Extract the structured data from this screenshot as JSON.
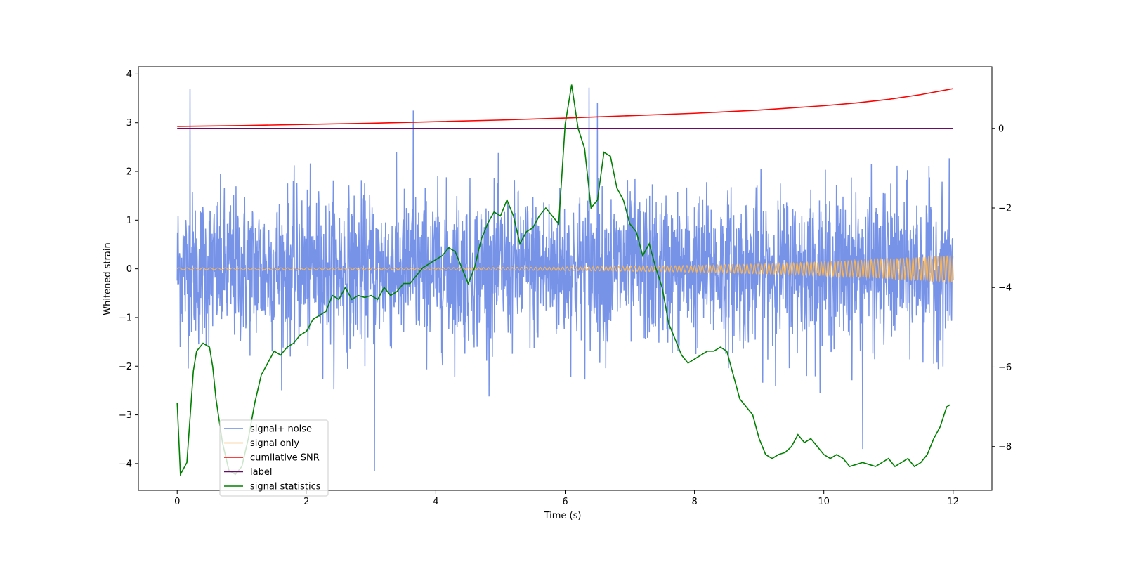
{
  "chart_data": {
    "type": "line",
    "xlabel": "Time (s)",
    "ylabel": "Whitened strain",
    "xlim": [
      -0.6,
      12.6
    ],
    "ylim_left": [
      -4.55,
      4.15
    ],
    "ylim_right": [
      -9.1,
      1.55
    ],
    "x_ticks": [
      0,
      2,
      4,
      6,
      8,
      10,
      12
    ],
    "y_ticks_left": [
      -4,
      -3,
      -2,
      -1,
      0,
      1,
      2,
      3,
      4
    ],
    "y_ticks_right": [
      -8,
      -6,
      -4,
      -2,
      0
    ],
    "grid": false,
    "legend_position": "lower-left",
    "series": [
      {
        "name": "signal+ noise",
        "axis": "left",
        "color": "#6b8ae6",
        "description": "dense noisy strain, roughly uniform amplitude around 1.3 with spikes to about 3.7 and -4.2",
        "x_range": [
          0,
          12
        ],
        "notable_extremes": [
          [
            0.2,
            3.7
          ],
          [
            6.37,
            3.72
          ],
          [
            3.05,
            -4.15
          ],
          [
            10.6,
            -3.7
          ],
          [
            6.5,
            3.4
          ],
          [
            3.65,
            3.25
          ]
        ]
      },
      {
        "name": "signal only",
        "axis": "left",
        "color": "#f5b45a",
        "description": "chirp oscillation around 0, amplitude growing from about 0.02 to 0.28 near t=12",
        "x_range": [
          0,
          12
        ],
        "amplitude_start": 0.02,
        "amplitude_end": 0.28
      },
      {
        "name": "cumilative SNR",
        "axis": "right",
        "color": "#ff0000",
        "x": [
          0,
          1,
          2,
          3,
          4,
          5,
          6,
          7,
          8,
          9,
          10,
          10.5,
          11,
          11.5,
          12
        ],
        "values": [
          0.05,
          0.07,
          0.1,
          0.13,
          0.17,
          0.21,
          0.26,
          0.32,
          0.38,
          0.46,
          0.57,
          0.64,
          0.73,
          0.85,
          1.0
        ]
      },
      {
        "name": "label",
        "axis": "right",
        "color": "#6a0d6a",
        "x": [
          0,
          12
        ],
        "values": [
          0,
          0
        ]
      },
      {
        "name": "signal statistics",
        "axis": "right",
        "color": "#008000",
        "x": [
          0,
          0.05,
          0.15,
          0.25,
          0.3,
          0.4,
          0.5,
          0.55,
          0.6,
          0.7,
          0.8,
          0.9,
          1.0,
          1.1,
          1.2,
          1.3,
          1.4,
          1.5,
          1.6,
          1.7,
          1.8,
          1.9,
          2.0,
          2.1,
          2.2,
          2.3,
          2.4,
          2.5,
          2.6,
          2.7,
          2.8,
          2.9,
          3.0,
          3.1,
          3.2,
          3.3,
          3.4,
          3.5,
          3.6,
          3.7,
          3.8,
          3.9,
          4.0,
          4.1,
          4.2,
          4.3,
          4.4,
          4.5,
          4.6,
          4.7,
          4.8,
          4.9,
          5.0,
          5.1,
          5.2,
          5.3,
          5.4,
          5.5,
          5.6,
          5.7,
          5.8,
          5.9,
          6.0,
          6.1,
          6.2,
          6.3,
          6.4,
          6.5,
          6.6,
          6.7,
          6.8,
          6.9,
          7.0,
          7.1,
          7.2,
          7.3,
          7.4,
          7.5,
          7.6,
          7.7,
          7.8,
          7.9,
          8.0,
          8.1,
          8.2,
          8.3,
          8.4,
          8.5,
          8.6,
          8.7,
          8.8,
          8.9,
          9.0,
          9.1,
          9.2,
          9.3,
          9.4,
          9.5,
          9.6,
          9.7,
          9.8,
          9.9,
          10.0,
          10.1,
          10.2,
          10.3,
          10.4,
          10.5,
          10.6,
          10.7,
          10.8,
          10.9,
          11.0,
          11.1,
          11.2,
          11.3,
          11.4,
          11.5,
          11.6,
          11.7,
          11.8,
          11.9,
          11.95
        ],
        "values": [
          -6.9,
          -8.7,
          -8.4,
          -6.1,
          -5.6,
          -5.4,
          -5.5,
          -6.0,
          -6.8,
          -7.9,
          -8.6,
          -8.7,
          -8.5,
          -7.8,
          -6.9,
          -6.2,
          -5.9,
          -5.6,
          -5.7,
          -5.5,
          -5.4,
          -5.2,
          -5.1,
          -4.8,
          -4.7,
          -4.6,
          -4.2,
          -4.3,
          -4.0,
          -4.3,
          -4.2,
          -4.25,
          -4.2,
          -4.3,
          -4.0,
          -4.2,
          -4.1,
          -3.9,
          -3.9,
          -3.7,
          -3.5,
          -3.4,
          -3.3,
          -3.2,
          -3.0,
          -3.1,
          -3.5,
          -3.9,
          -3.5,
          -2.8,
          -2.4,
          -2.1,
          -2.2,
          -1.8,
          -2.2,
          -2.9,
          -2.6,
          -2.5,
          -2.2,
          -2.0,
          -2.2,
          -2.4,
          0.1,
          1.1,
          0.0,
          -0.5,
          -2.0,
          -1.8,
          -0.6,
          -0.7,
          -1.5,
          -1.8,
          -2.4,
          -2.6,
          -3.2,
          -2.9,
          -3.5,
          -4.0,
          -4.9,
          -5.3,
          -5.7,
          -5.9,
          -5.8,
          -5.7,
          -5.6,
          -5.6,
          -5.5,
          -5.6,
          -6.2,
          -6.8,
          -7.0,
          -7.2,
          -7.8,
          -8.2,
          -8.3,
          -8.2,
          -8.15,
          -8.0,
          -7.7,
          -7.9,
          -7.8,
          -8.0,
          -8.2,
          -8.3,
          -8.2,
          -8.3,
          -8.5,
          -8.45,
          -8.4,
          -8.45,
          -8.5,
          -8.4,
          -8.3,
          -8.5,
          -8.4,
          -8.3,
          -8.5,
          -8.4,
          -8.2,
          -7.8,
          -7.5,
          -7.0,
          -6.95
        ]
      }
    ]
  }
}
